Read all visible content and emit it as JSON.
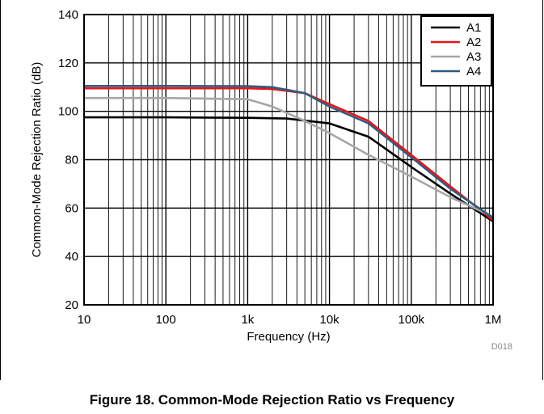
{
  "figure": {
    "caption": "Figure 18. Common-Mode Rejection Ratio vs Frequency",
    "id_label": "D018"
  },
  "chart_data": {
    "type": "line",
    "title": "",
    "xlabel": "Frequency (Hz)",
    "ylabel": "Common-Mode Rejection Ratio (dB)",
    "x_scale": "log",
    "xlim": [
      10,
      1000000
    ],
    "ylim": [
      20,
      140
    ],
    "x_ticks": [
      10,
      100,
      1000,
      10000,
      100000,
      1000000
    ],
    "x_tick_labels": [
      "10",
      "100",
      "1k",
      "10k",
      "100k",
      "1M"
    ],
    "y_ticks": [
      20,
      40,
      60,
      80,
      100,
      120,
      140
    ],
    "y_tick_labels": [
      "20",
      "40",
      "60",
      "80",
      "100",
      "120",
      "140"
    ],
    "grid": true,
    "legend_position": "top-right",
    "series": [
      {
        "name": "A1",
        "color": "#000000",
        "x": [
          10,
          100,
          1000,
          3000,
          10000,
          30000,
          100000,
          300000,
          1000000
        ],
        "y": [
          97.5,
          97.5,
          97.3,
          97.0,
          95,
          89.5,
          77,
          66,
          54.5
        ]
      },
      {
        "name": "A2",
        "color": "#e8141b",
        "x": [
          10,
          100,
          1000,
          2000,
          5000,
          10000,
          30000,
          100000,
          300000,
          1000000
        ],
        "y": [
          109.5,
          109.5,
          109.5,
          109.2,
          107.5,
          103,
          96,
          82,
          69,
          55
        ]
      },
      {
        "name": "A3",
        "color": "#a6a6a6",
        "x": [
          10,
          100,
          1000,
          2000,
          5000,
          10000,
          30000,
          100000,
          300000,
          1000000
        ],
        "y": [
          105.5,
          105.5,
          105,
          102,
          96,
          91,
          82,
          73,
          64.5,
          56.5
        ]
      },
      {
        "name": "A4",
        "color": "#2e5c80",
        "x": [
          10,
          100,
          1000,
          2000,
          5000,
          10000,
          30000,
          100000,
          300000,
          1000000
        ],
        "y": [
          110.5,
          110.5,
          110.4,
          110,
          107.5,
          102,
          95,
          81,
          68,
          56
        ]
      }
    ]
  }
}
